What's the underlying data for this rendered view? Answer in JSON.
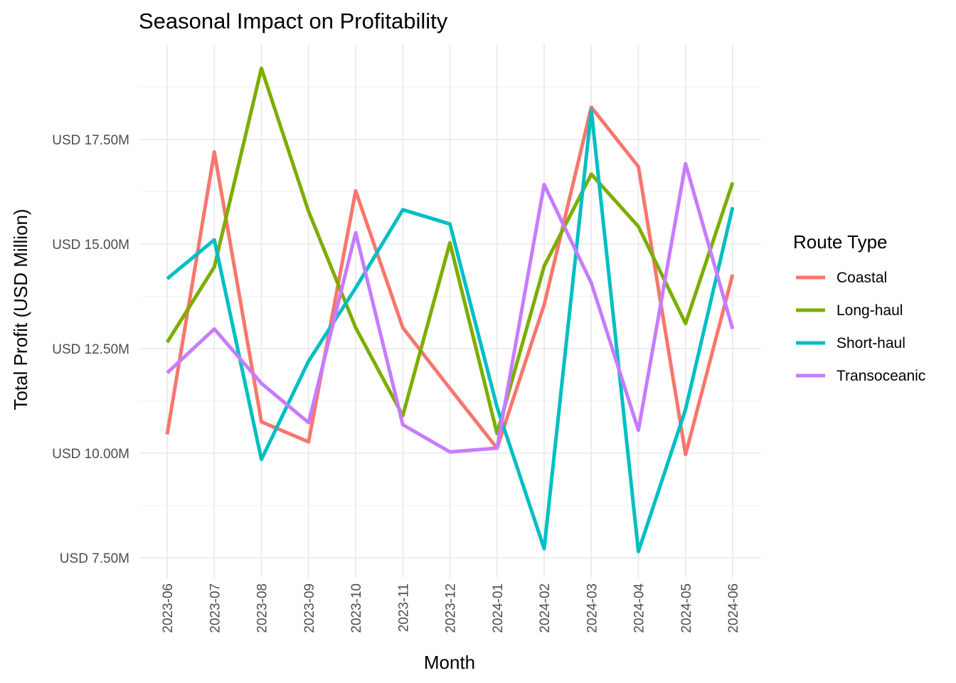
{
  "chart_data": {
    "type": "line",
    "title": "Seasonal Impact on Profitability",
    "xlabel": "Month",
    "ylabel": "Total Profit (USD Million)",
    "categories": [
      "2023-06",
      "2023-07",
      "2023-08",
      "2023-09",
      "2023-10",
      "2023-11",
      "2023-12",
      "2024-01",
      "2024-02",
      "2024-03",
      "2024-04",
      "2024-05",
      "2024-06"
    ],
    "ylim": [
      7.4,
      19.9
    ],
    "y_ticks": [
      7.5,
      10.0,
      12.5,
      15.0,
      17.5
    ],
    "y_tick_labels": [
      "USD 7.50M",
      "USD 10.00M",
      "USD 12.50M",
      "USD 15.00M",
      "USD 17.50M"
    ],
    "grid": true,
    "legend": {
      "title": "Route Type",
      "placement": "right"
    },
    "series": [
      {
        "name": "Coastal",
        "color": "#F8766D",
        "values": [
          10.45,
          17.2,
          10.75,
          10.27,
          16.27,
          13.0,
          11.55,
          10.12,
          13.55,
          18.27,
          16.85,
          9.97,
          14.27
        ]
      },
      {
        "name": "Long-haul",
        "color": "#7CAE00",
        "values": [
          12.65,
          14.45,
          19.2,
          15.78,
          13.0,
          10.9,
          15.03,
          10.47,
          14.47,
          16.67,
          15.42,
          13.1,
          16.47
        ]
      },
      {
        "name": "Short-haul",
        "color": "#00BFC4",
        "values": [
          14.17,
          15.1,
          9.85,
          12.2,
          13.95,
          15.82,
          15.48,
          11.1,
          7.72,
          18.2,
          7.65,
          11.05,
          15.88
        ]
      },
      {
        "name": "Transoceanic",
        "color": "#C77CFF",
        "values": [
          11.92,
          12.97,
          11.67,
          10.73,
          15.27,
          10.68,
          10.03,
          10.12,
          16.42,
          14.07,
          10.55,
          16.92,
          12.97
        ]
      }
    ]
  }
}
